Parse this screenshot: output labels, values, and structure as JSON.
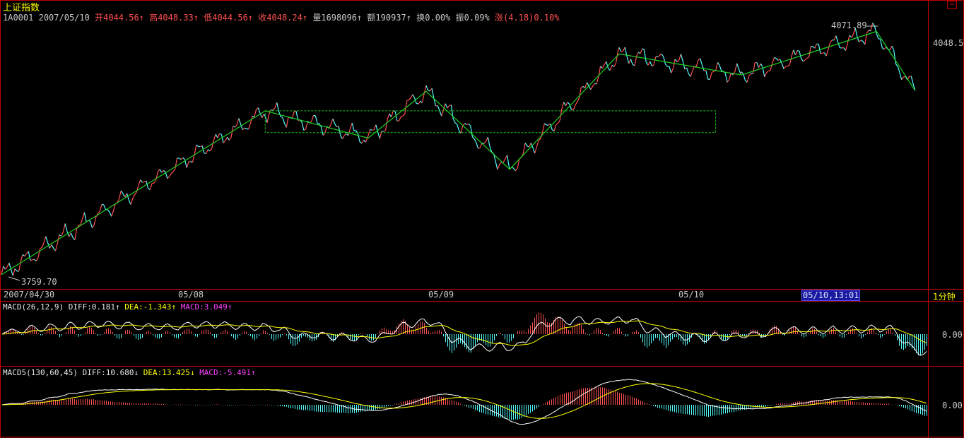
{
  "title": "上证指数",
  "quote": {
    "code": "1A0001",
    "date": "2007/05/10",
    "open_label": "开",
    "open": "4044.56",
    "high_label": "高",
    "high": "4048.33",
    "low_label": "低",
    "low": "4044.56",
    "close_label": "收",
    "close": "4048.24",
    "vol_label": "量",
    "vol": "1698096",
    "amt_label": "额",
    "amt": "190937",
    "turn_label": "换",
    "turn": "0.00%",
    "amp_label": "振",
    "amp": "0.09%",
    "chg_label": "涨",
    "chg": "(4.18)0.10%"
  },
  "arrow": "↑",
  "arrow_down": "↓",
  "price_labels": {
    "low": "3759.70",
    "high": "4071.89",
    "last": "4048.5"
  },
  "dates": {
    "d1": "2007/04/30",
    "d2": "05/08",
    "d3": "05/09",
    "d4": "05/10",
    "current": "05/10,13:01"
  },
  "period": "1分钟",
  "macd1": {
    "name": "MACD(26,12,9)",
    "diff": "DIFF:0.181",
    "dea": "DEA:-1.343",
    "macd": "MACD:3.049",
    "zero": "0.00"
  },
  "macd2": {
    "name": "MACD5(130,60,45)",
    "diff": "DIFF:10.680",
    "dea": "DEA:13.425",
    "macd": "MACD:-5.491",
    "zero": "0.00"
  },
  "colors": {
    "up": "#ff5050",
    "down": "#54ffff",
    "wave": "#20d020",
    "frame": "#c00000",
    "box": "#18c018",
    "diff": "#ffffff",
    "dea": "#ffff00"
  },
  "chart_data": {
    "type": "line",
    "zigzag": [
      {
        "t": 0,
        "price": 3759.7
      },
      {
        "t": 205,
        "price": 3970
      },
      {
        "t": 285,
        "price": 3935
      },
      {
        "t": 330,
        "price": 3995
      },
      {
        "t": 395,
        "price": 3895
      },
      {
        "t": 480,
        "price": 4043
      },
      {
        "t": 575,
        "price": 4016
      },
      {
        "t": 680,
        "price": 4071.89
      },
      {
        "t": 710,
        "price": 3996
      }
    ],
    "box": {
      "t_start": 205,
      "t_end": 555,
      "price_top": 3970,
      "price_bottom": 3942
    },
    "price_range": [
      3746,
      4085
    ],
    "time_range": [
      0,
      720
    ]
  }
}
